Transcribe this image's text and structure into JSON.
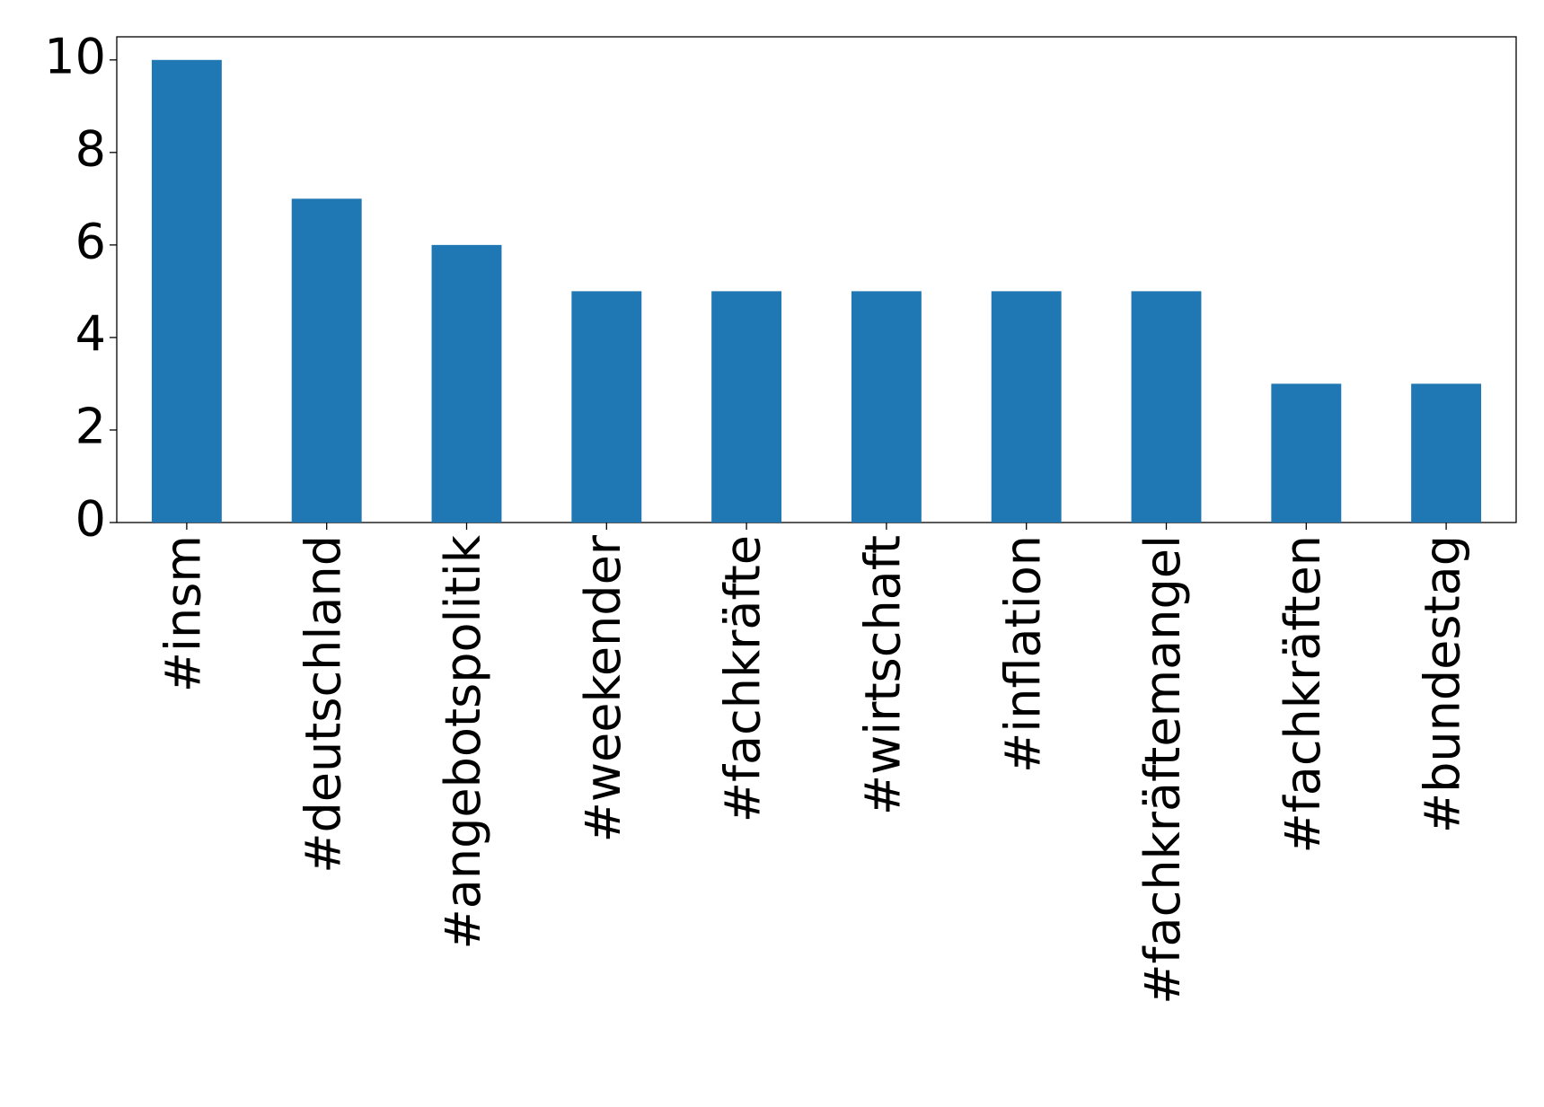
{
  "chart_data": {
    "type": "bar",
    "categories": [
      "#insm",
      "#deutschland",
      "#angebotspolitik",
      "#weekender",
      "#fachkräfte",
      "#wirtschaft",
      "#inflation",
      "#fachkräftemangel",
      "#fachkräften",
      "#bundestag"
    ],
    "values": [
      10,
      7,
      6,
      5,
      5,
      5,
      5,
      5,
      3,
      3
    ],
    "color": "#1f77b4",
    "ylim": [
      0,
      10.5
    ],
    "yticks": [
      0,
      2,
      4,
      6,
      8,
      10
    ],
    "grid": false
  }
}
